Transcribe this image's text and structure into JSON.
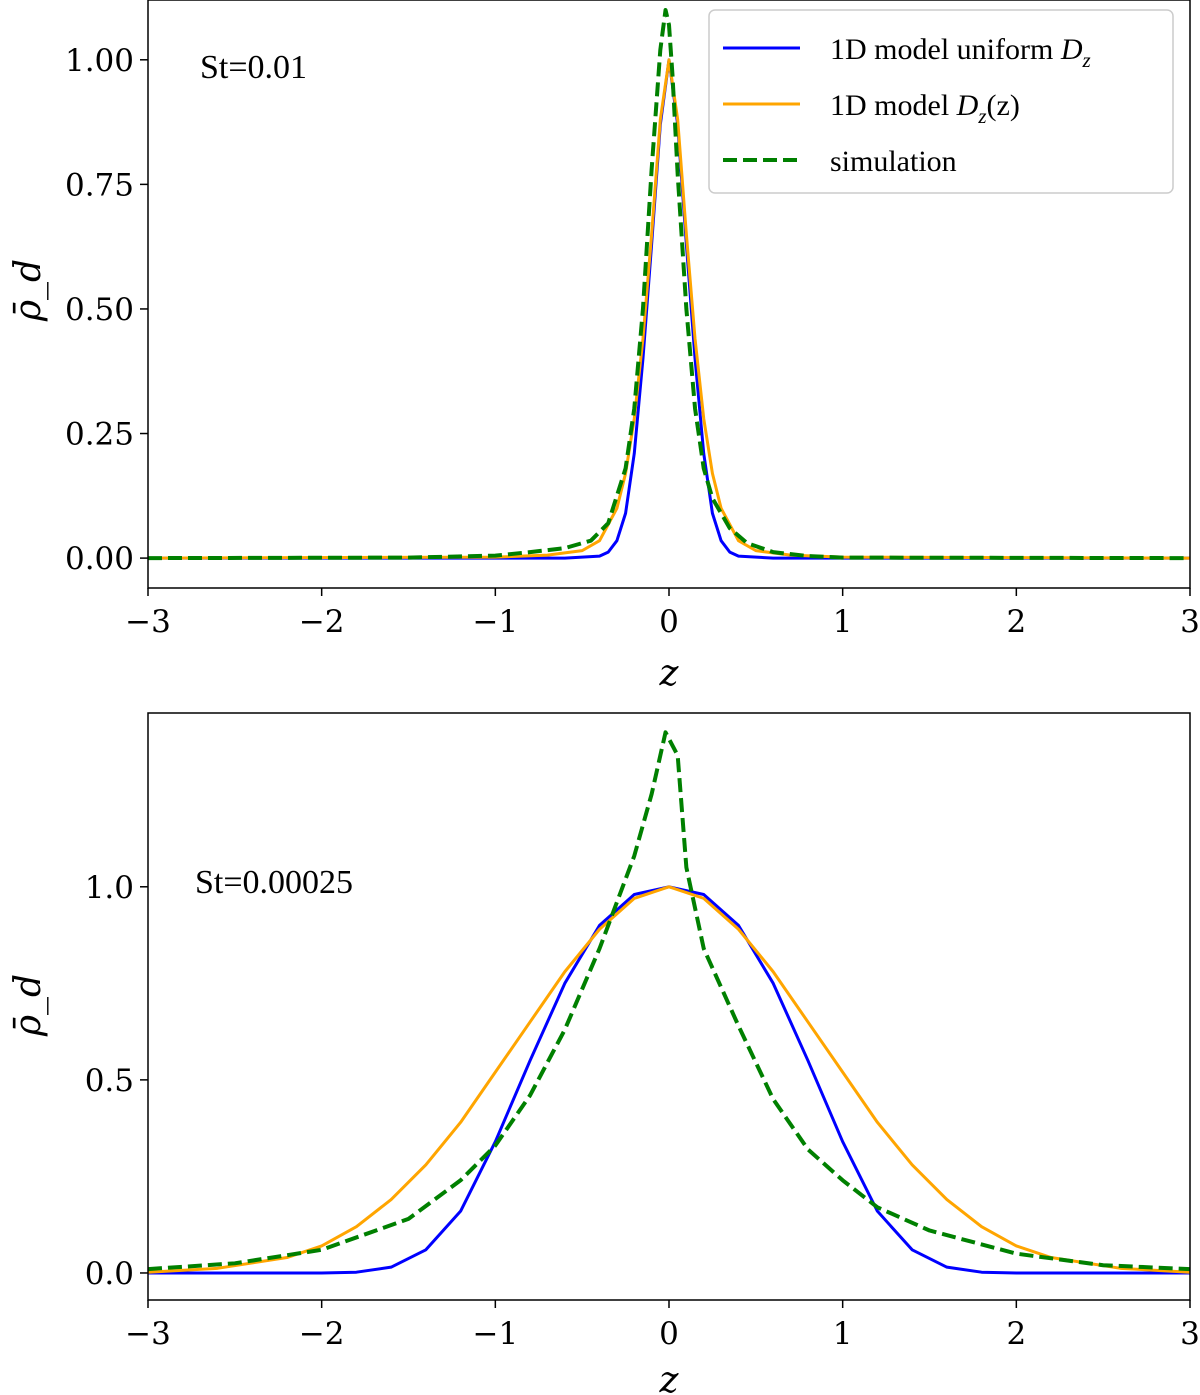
{
  "chart_data": [
    {
      "type": "line",
      "annotation": "St=0.01",
      "xlabel": "z",
      "ylabel": "ρ̄_d",
      "xlim": [
        -3,
        3
      ],
      "ylim": [
        -0.06,
        1.12
      ],
      "xticks": [
        -3,
        -2,
        -1,
        0,
        1,
        2,
        3
      ],
      "xtick_labels": [
        "−3",
        "−2",
        "−1",
        "0",
        "1",
        "2",
        "3"
      ],
      "yticks": [
        0.0,
        0.25,
        0.5,
        0.75,
        1.0
      ],
      "ytick_labels": [
        "0.00",
        "0.25",
        "0.50",
        "0.75",
        "1.00"
      ],
      "legend": {
        "position": "top-right",
        "entries": [
          {
            "label": "1D model uniform ",
            "math": "D",
            "sub": "z",
            "suffix": ""
          },
          {
            "label": "1D model ",
            "math": "D",
            "sub": "z",
            "suffix": "(z)"
          },
          {
            "label": "simulation",
            "math": "",
            "sub": "",
            "suffix": ""
          }
        ]
      },
      "series": [
        {
          "name": "1D model uniform D_z",
          "color": "#0000ff",
          "style": "solid",
          "x": [
            -3,
            -0.6,
            -0.4,
            -0.35,
            -0.3,
            -0.25,
            -0.2,
            -0.15,
            -0.1,
            -0.05,
            0,
            0.05,
            0.1,
            0.15,
            0.2,
            0.25,
            0.3,
            0.35,
            0.4,
            0.6,
            3
          ],
          "y": [
            0,
            0,
            0.004,
            0.012,
            0.035,
            0.09,
            0.21,
            0.4,
            0.63,
            0.87,
            1.0,
            0.87,
            0.63,
            0.4,
            0.21,
            0.09,
            0.035,
            0.012,
            0.004,
            0,
            0
          ]
        },
        {
          "name": "1D model D_z(z)",
          "color": "#ffa500",
          "style": "solid",
          "x": [
            -3,
            -1.0,
            -0.7,
            -0.5,
            -0.4,
            -0.3,
            -0.25,
            -0.2,
            -0.15,
            -0.1,
            -0.05,
            0,
            0.05,
            0.1,
            0.15,
            0.2,
            0.25,
            0.3,
            0.4,
            0.5,
            0.7,
            1.0,
            3
          ],
          "y": [
            0,
            0.002,
            0.006,
            0.015,
            0.035,
            0.1,
            0.17,
            0.28,
            0.44,
            0.65,
            0.88,
            1.0,
            0.88,
            0.65,
            0.44,
            0.28,
            0.17,
            0.1,
            0.035,
            0.015,
            0.006,
            0.002,
            0
          ]
        },
        {
          "name": "simulation",
          "color": "#008000",
          "style": "dashed",
          "x": [
            -3,
            -1.5,
            -1.0,
            -0.8,
            -0.6,
            -0.45,
            -0.35,
            -0.25,
            -0.2,
            -0.15,
            -0.1,
            -0.05,
            -0.02,
            0.0,
            0.02,
            0.05,
            0.1,
            0.15,
            0.2,
            0.25,
            0.35,
            0.45,
            0.6,
            0.8,
            1.0,
            3
          ],
          "y": [
            0,
            0.001,
            0.005,
            0.012,
            0.02,
            0.035,
            0.07,
            0.18,
            0.3,
            0.5,
            0.78,
            1.02,
            1.1,
            1.07,
            0.97,
            0.77,
            0.5,
            0.3,
            0.18,
            0.12,
            0.06,
            0.03,
            0.012,
            0.004,
            0.001,
            0
          ]
        }
      ]
    },
    {
      "type": "line",
      "annotation": "St=0.00025",
      "xlabel": "z",
      "ylabel": "ρ̄_d",
      "xlim": [
        -3,
        3
      ],
      "ylim": [
        -0.07,
        1.45
      ],
      "xticks": [
        -3,
        -2,
        -1,
        0,
        1,
        2,
        3
      ],
      "xtick_labels": [
        "−3",
        "−2",
        "−1",
        "0",
        "1",
        "2",
        "3"
      ],
      "yticks": [
        0.0,
        0.5,
        1.0
      ],
      "ytick_labels": [
        "0.0",
        "0.5",
        "1.0"
      ],
      "series": [
        {
          "name": "1D model uniform D_z",
          "color": "#0000ff",
          "style": "solid",
          "x": [
            -3,
            -2.0,
            -1.8,
            -1.6,
            -1.4,
            -1.2,
            -1.0,
            -0.8,
            -0.6,
            -0.4,
            -0.2,
            0,
            0.2,
            0.4,
            0.6,
            0.8,
            1.0,
            1.2,
            1.4,
            1.6,
            1.8,
            2.0,
            3
          ],
          "y": [
            0,
            0.0,
            0.002,
            0.015,
            0.06,
            0.16,
            0.34,
            0.55,
            0.75,
            0.9,
            0.98,
            1.0,
            0.98,
            0.9,
            0.75,
            0.55,
            0.34,
            0.16,
            0.06,
            0.015,
            0.002,
            0.0,
            0
          ]
        },
        {
          "name": "1D model D_z(z)",
          "color": "#ffa500",
          "style": "solid",
          "x": [
            -3,
            -2.6,
            -2.2,
            -2.0,
            -1.8,
            -1.6,
            -1.4,
            -1.2,
            -1.0,
            -0.8,
            -0.6,
            -0.4,
            -0.2,
            0,
            0.2,
            0.4,
            0.6,
            0.8,
            1.0,
            1.2,
            1.4,
            1.6,
            1.8,
            2.0,
            2.2,
            2.6,
            3
          ],
          "y": [
            0.002,
            0.012,
            0.04,
            0.07,
            0.12,
            0.19,
            0.28,
            0.39,
            0.52,
            0.65,
            0.78,
            0.89,
            0.97,
            1.0,
            0.97,
            0.89,
            0.78,
            0.65,
            0.52,
            0.39,
            0.28,
            0.19,
            0.12,
            0.07,
            0.04,
            0.012,
            0.002
          ]
        },
        {
          "name": "simulation",
          "color": "#008000",
          "style": "dashed",
          "x": [
            -3,
            -2.5,
            -2.0,
            -1.5,
            -1.2,
            -1.0,
            -0.8,
            -0.6,
            -0.4,
            -0.2,
            -0.1,
            -0.02,
            0.05,
            0.1,
            0.2,
            0.4,
            0.6,
            0.8,
            1.0,
            1.2,
            1.5,
            2.0,
            2.5,
            3
          ],
          "y": [
            0.01,
            0.025,
            0.06,
            0.14,
            0.24,
            0.33,
            0.46,
            0.63,
            0.84,
            1.08,
            1.24,
            1.4,
            1.34,
            1.05,
            0.84,
            0.64,
            0.45,
            0.32,
            0.24,
            0.17,
            0.11,
            0.05,
            0.02,
            0.01
          ]
        }
      ]
    }
  ]
}
